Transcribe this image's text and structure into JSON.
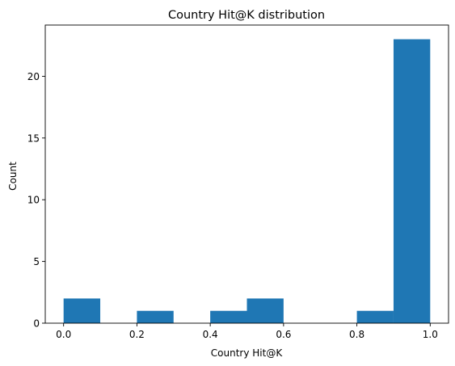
{
  "chart_data": {
    "type": "bar",
    "title": "Country Hit@K distribution",
    "xlabel": "Country Hit@K",
    "ylabel": "Count",
    "xlim": [
      -0.05,
      1.05
    ],
    "ylim": [
      0,
      24.15
    ],
    "grid": false,
    "bar_color": "#1f77b4",
    "bins": [
      {
        "start": 0.0,
        "end": 0.1,
        "count": 2
      },
      {
        "start": 0.1,
        "end": 0.2,
        "count": 0
      },
      {
        "start": 0.2,
        "end": 0.3,
        "count": 1
      },
      {
        "start": 0.3,
        "end": 0.4,
        "count": 0
      },
      {
        "start": 0.4,
        "end": 0.5,
        "count": 1
      },
      {
        "start": 0.5,
        "end": 0.6,
        "count": 2
      },
      {
        "start": 0.6,
        "end": 0.7,
        "count": 0
      },
      {
        "start": 0.7,
        "end": 0.8,
        "count": 0
      },
      {
        "start": 0.8,
        "end": 0.9,
        "count": 1
      },
      {
        "start": 0.9,
        "end": 1.0,
        "count": 23
      }
    ],
    "x_ticks": [
      {
        "value": 0.0,
        "label": "0.0"
      },
      {
        "value": 0.2,
        "label": "0.2"
      },
      {
        "value": 0.4,
        "label": "0.4"
      },
      {
        "value": 0.6,
        "label": "0.6"
      },
      {
        "value": 0.8,
        "label": "0.8"
      },
      {
        "value": 1.0,
        "label": "1.0"
      }
    ],
    "y_ticks": [
      {
        "value": 0,
        "label": "0"
      },
      {
        "value": 5,
        "label": "5"
      },
      {
        "value": 10,
        "label": "10"
      },
      {
        "value": 15,
        "label": "15"
      },
      {
        "value": 20,
        "label": "20"
      }
    ]
  }
}
